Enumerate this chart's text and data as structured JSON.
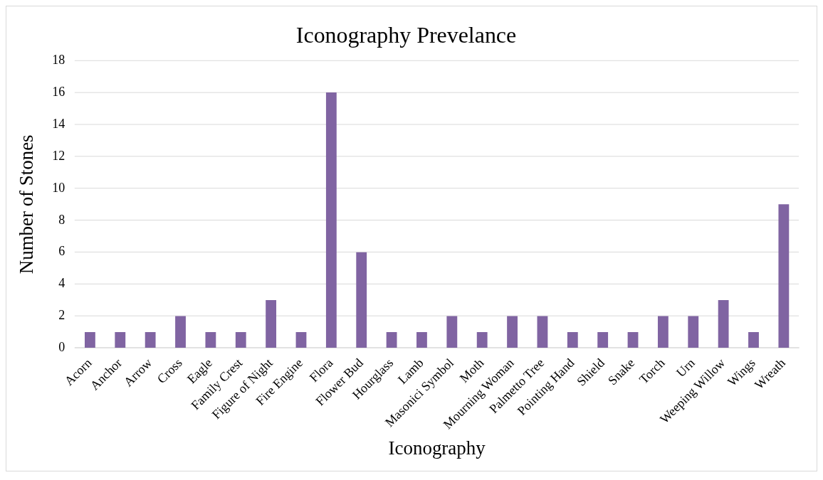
{
  "chart_data": {
    "type": "bar",
    "title": "Iconography Prevelance",
    "xlabel": "Iconography",
    "ylabel": "Number of Stones",
    "categories": [
      "Acorn",
      "Anchor",
      "Arrow",
      "Cross",
      "Eagle",
      "Family Crest",
      "Figure of Night",
      "Fire Engine",
      "Flora",
      "Flower Bud",
      "Hourglass",
      "Lamb",
      "Masonici Symbol",
      "Moth",
      "Mourning Woman",
      "Palmetto Tree",
      "Pointing Hand",
      "Shield",
      "Snake",
      "Torch",
      "Urn",
      "Weeping Willow",
      "Wings",
      "Wreath"
    ],
    "values": [
      1,
      1,
      1,
      2,
      1,
      1,
      3,
      1,
      16,
      6,
      1,
      1,
      2,
      1,
      2,
      2,
      1,
      1,
      1,
      2,
      2,
      3,
      1,
      9
    ],
    "color": "#8064a2",
    "ylim": [
      0,
      18
    ],
    "yticks": [
      0,
      2,
      4,
      6,
      8,
      10,
      12,
      14,
      16,
      18
    ],
    "grid": "y"
  }
}
